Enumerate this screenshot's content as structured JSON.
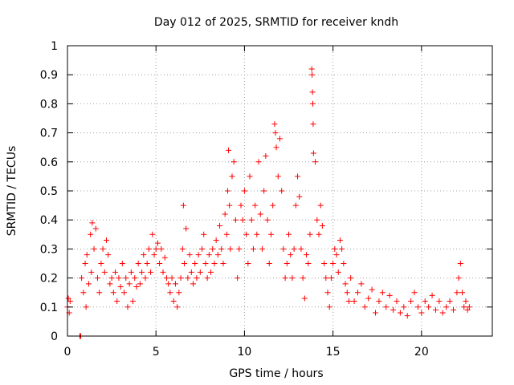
{
  "chart_data": {
    "type": "scatter",
    "title": "Day 012 of 2025, SRMTID for receiver kndh",
    "xlabel": "GPS time / hours",
    "ylabel": "SRMTID / TECUs",
    "xlim": [
      0,
      24
    ],
    "ylim": [
      0,
      1
    ],
    "x_ticks": [
      0,
      5,
      10,
      15,
      20
    ],
    "x_tick_labels": [
      "0",
      "5",
      "10",
      "15",
      "20"
    ],
    "y_ticks": [
      0,
      0.1,
      0.2,
      0.3,
      0.4,
      0.5,
      0.6,
      0.7,
      0.8,
      0.9,
      1
    ],
    "y_tick_labels": [
      "0",
      "0.1",
      "0.2",
      "0.3",
      "0.4",
      "0.5",
      "0.6",
      "0.7",
      "0.8",
      "0.9",
      "1"
    ],
    "grid": true,
    "marker": "plus",
    "colors": {
      "series": "#ff0000",
      "grid": "#a0a0a0",
      "axis": "#000000"
    },
    "series": [
      {
        "name": "SRMTID",
        "points": [
          [
            0.0,
            0.1
          ],
          [
            0.05,
            0.13
          ],
          [
            0.1,
            0.08
          ],
          [
            0.15,
            0.12
          ],
          [
            0.7,
            0.0
          ],
          [
            0.72,
            0.0
          ],
          [
            0.75,
            0.0
          ],
          [
            0.8,
            0.2
          ],
          [
            0.9,
            0.15
          ],
          [
            1.0,
            0.25
          ],
          [
            1.05,
            0.1
          ],
          [
            1.1,
            0.28
          ],
          [
            1.2,
            0.18
          ],
          [
            1.3,
            0.35
          ],
          [
            1.35,
            0.22
          ],
          [
            1.4,
            0.39
          ],
          [
            1.5,
            0.3
          ],
          [
            1.6,
            0.37
          ],
          [
            1.7,
            0.2
          ],
          [
            1.8,
            0.15
          ],
          [
            1.9,
            0.25
          ],
          [
            2.0,
            0.3
          ],
          [
            2.1,
            0.22
          ],
          [
            2.2,
            0.33
          ],
          [
            2.3,
            0.28
          ],
          [
            2.4,
            0.18
          ],
          [
            2.5,
            0.2
          ],
          [
            2.6,
            0.15
          ],
          [
            2.7,
            0.22
          ],
          [
            2.8,
            0.12
          ],
          [
            2.9,
            0.2
          ],
          [
            3.0,
            0.17
          ],
          [
            3.1,
            0.25
          ],
          [
            3.2,
            0.15
          ],
          [
            3.3,
            0.2
          ],
          [
            3.4,
            0.1
          ],
          [
            3.5,
            0.18
          ],
          [
            3.6,
            0.22
          ],
          [
            3.7,
            0.12
          ],
          [
            3.8,
            0.2
          ],
          [
            3.9,
            0.17
          ],
          [
            4.0,
            0.25
          ],
          [
            4.1,
            0.18
          ],
          [
            4.2,
            0.22
          ],
          [
            4.3,
            0.28
          ],
          [
            4.4,
            0.2
          ],
          [
            4.5,
            0.25
          ],
          [
            4.6,
            0.3
          ],
          [
            4.7,
            0.22
          ],
          [
            4.8,
            0.35
          ],
          [
            4.9,
            0.28
          ],
          [
            5.0,
            0.3
          ],
          [
            5.1,
            0.32
          ],
          [
            5.2,
            0.25
          ],
          [
            5.3,
            0.3
          ],
          [
            5.4,
            0.22
          ],
          [
            5.5,
            0.27
          ],
          [
            5.6,
            0.2
          ],
          [
            5.7,
            0.18
          ],
          [
            5.8,
            0.15
          ],
          [
            5.9,
            0.2
          ],
          [
            6.0,
            0.12
          ],
          [
            6.1,
            0.18
          ],
          [
            6.2,
            0.1
          ],
          [
            6.3,
            0.15
          ],
          [
            6.4,
            0.2
          ],
          [
            6.5,
            0.3
          ],
          [
            6.55,
            0.45
          ],
          [
            6.6,
            0.25
          ],
          [
            6.7,
            0.37
          ],
          [
            6.8,
            0.2
          ],
          [
            6.9,
            0.28
          ],
          [
            7.0,
            0.22
          ],
          [
            7.1,
            0.18
          ],
          [
            7.2,
            0.25
          ],
          [
            7.3,
            0.2
          ],
          [
            7.4,
            0.28
          ],
          [
            7.5,
            0.22
          ],
          [
            7.6,
            0.3
          ],
          [
            7.7,
            0.35
          ],
          [
            7.8,
            0.25
          ],
          [
            7.9,
            0.2
          ],
          [
            8.0,
            0.28
          ],
          [
            8.1,
            0.22
          ],
          [
            8.2,
            0.3
          ],
          [
            8.3,
            0.25
          ],
          [
            8.4,
            0.33
          ],
          [
            8.5,
            0.28
          ],
          [
            8.6,
            0.38
          ],
          [
            8.7,
            0.3
          ],
          [
            8.8,
            0.25
          ],
          [
            8.9,
            0.42
          ],
          [
            9.0,
            0.35
          ],
          [
            9.05,
            0.5
          ],
          [
            9.1,
            0.64
          ],
          [
            9.15,
            0.45
          ],
          [
            9.2,
            0.3
          ],
          [
            9.3,
            0.55
          ],
          [
            9.4,
            0.6
          ],
          [
            9.5,
            0.4
          ],
          [
            9.6,
            0.2
          ],
          [
            9.7,
            0.3
          ],
          [
            9.8,
            0.45
          ],
          [
            9.9,
            0.4
          ],
          [
            10.0,
            0.5
          ],
          [
            10.1,
            0.35
          ],
          [
            10.2,
            0.25
          ],
          [
            10.3,
            0.55
          ],
          [
            10.4,
            0.4
          ],
          [
            10.5,
            0.3
          ],
          [
            10.6,
            0.45
          ],
          [
            10.7,
            0.35
          ],
          [
            10.8,
            0.6
          ],
          [
            10.9,
            0.42
          ],
          [
            11.0,
            0.3
          ],
          [
            11.1,
            0.5
          ],
          [
            11.2,
            0.62
          ],
          [
            11.3,
            0.4
          ],
          [
            11.4,
            0.25
          ],
          [
            11.5,
            0.35
          ],
          [
            11.6,
            0.45
          ],
          [
            11.7,
            0.73
          ],
          [
            11.75,
            0.7
          ],
          [
            11.8,
            0.65
          ],
          [
            11.9,
            0.55
          ],
          [
            12.0,
            0.68
          ],
          [
            12.1,
            0.5
          ],
          [
            12.2,
            0.3
          ],
          [
            12.3,
            0.2
          ],
          [
            12.4,
            0.25
          ],
          [
            12.5,
            0.35
          ],
          [
            12.6,
            0.28
          ],
          [
            12.7,
            0.2
          ],
          [
            12.8,
            0.3
          ],
          [
            12.9,
            0.45
          ],
          [
            13.0,
            0.55
          ],
          [
            13.1,
            0.48
          ],
          [
            13.2,
            0.3
          ],
          [
            13.3,
            0.2
          ],
          [
            13.4,
            0.13
          ],
          [
            13.5,
            0.28
          ],
          [
            13.6,
            0.25
          ],
          [
            13.7,
            0.35
          ],
          [
            13.8,
            0.92
          ],
          [
            13.82,
            0.9
          ],
          [
            13.84,
            0.84
          ],
          [
            13.86,
            0.8
          ],
          [
            13.88,
            0.73
          ],
          [
            13.9,
            0.63
          ],
          [
            14.0,
            0.6
          ],
          [
            14.1,
            0.4
          ],
          [
            14.2,
            0.35
          ],
          [
            14.3,
            0.45
          ],
          [
            14.4,
            0.38
          ],
          [
            14.5,
            0.25
          ],
          [
            14.6,
            0.2
          ],
          [
            14.7,
            0.15
          ],
          [
            14.8,
            0.1
          ],
          [
            14.9,
            0.2
          ],
          [
            15.0,
            0.25
          ],
          [
            15.1,
            0.3
          ],
          [
            15.2,
            0.28
          ],
          [
            15.3,
            0.22
          ],
          [
            15.4,
            0.33
          ],
          [
            15.5,
            0.3
          ],
          [
            15.6,
            0.25
          ],
          [
            15.7,
            0.18
          ],
          [
            15.8,
            0.15
          ],
          [
            15.9,
            0.12
          ],
          [
            16.0,
            0.2
          ],
          [
            16.2,
            0.12
          ],
          [
            16.4,
            0.15
          ],
          [
            16.6,
            0.18
          ],
          [
            16.8,
            0.1
          ],
          [
            17.0,
            0.13
          ],
          [
            17.2,
            0.16
          ],
          [
            17.4,
            0.08
          ],
          [
            17.6,
            0.12
          ],
          [
            17.8,
            0.15
          ],
          [
            18.0,
            0.1
          ],
          [
            18.2,
            0.14
          ],
          [
            18.4,
            0.09
          ],
          [
            18.6,
            0.12
          ],
          [
            18.8,
            0.08
          ],
          [
            19.0,
            0.1
          ],
          [
            19.2,
            0.07
          ],
          [
            19.4,
            0.12
          ],
          [
            19.6,
            0.15
          ],
          [
            19.8,
            0.1
          ],
          [
            20.0,
            0.08
          ],
          [
            20.2,
            0.12
          ],
          [
            20.4,
            0.1
          ],
          [
            20.6,
            0.14
          ],
          [
            20.8,
            0.09
          ],
          [
            21.0,
            0.12
          ],
          [
            21.2,
            0.08
          ],
          [
            21.4,
            0.1
          ],
          [
            21.6,
            0.12
          ],
          [
            21.8,
            0.09
          ],
          [
            22.0,
            0.15
          ],
          [
            22.1,
            0.2
          ],
          [
            22.2,
            0.25
          ],
          [
            22.3,
            0.15
          ],
          [
            22.4,
            0.1
          ],
          [
            22.5,
            0.12
          ],
          [
            22.6,
            0.09
          ],
          [
            22.7,
            0.1
          ]
        ]
      }
    ]
  }
}
